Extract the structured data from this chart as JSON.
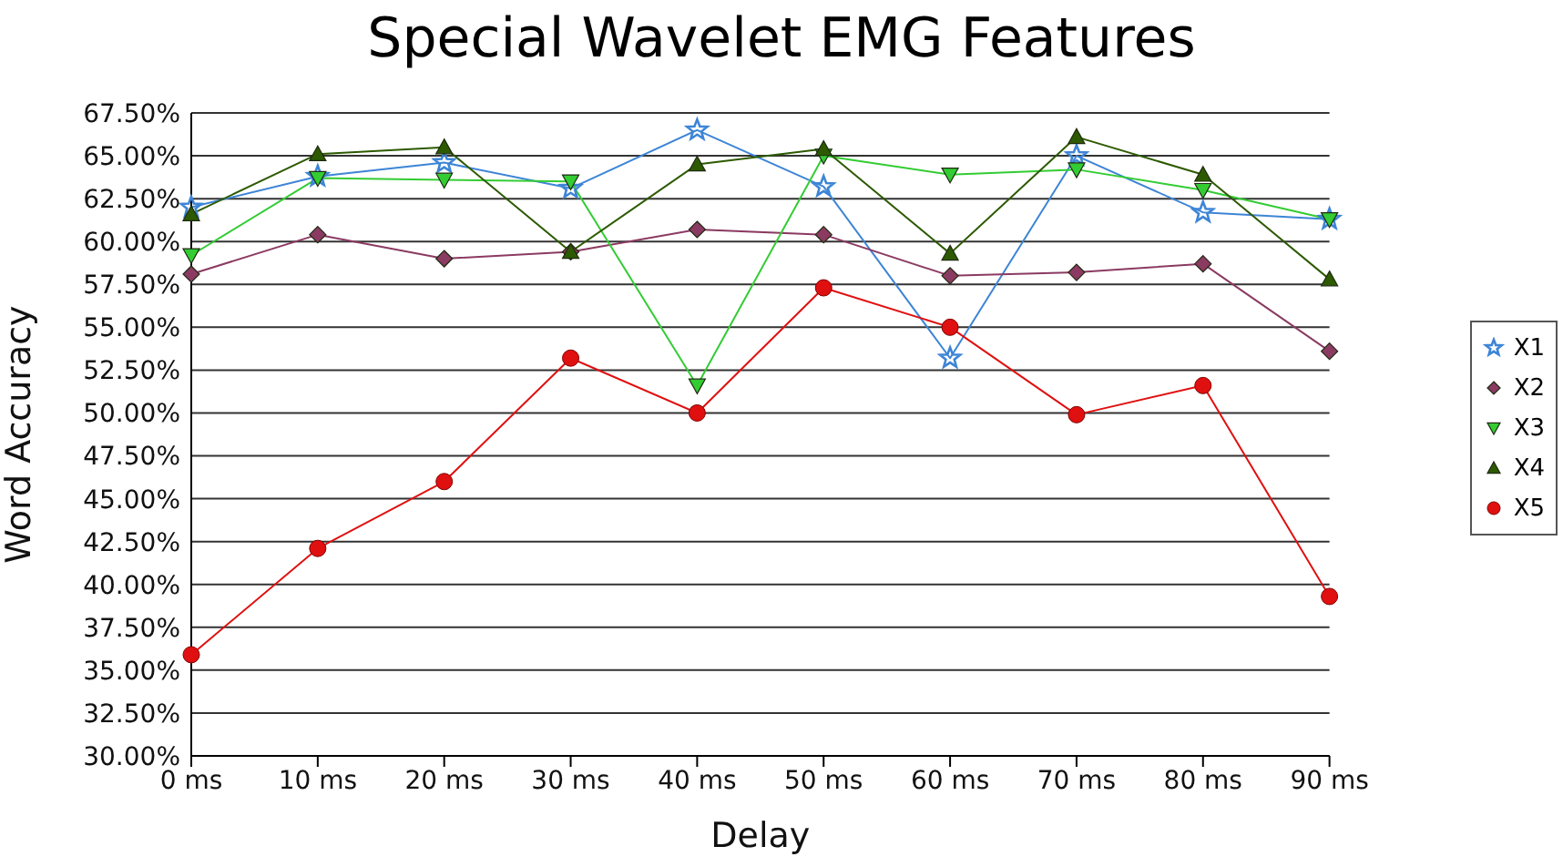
{
  "chart_data": {
    "type": "line",
    "title": "Special Wavelet EMG Features",
    "xlabel": "Delay",
    "ylabel": "Word Accuracy",
    "categories": [
      "0 ms",
      "10 ms",
      "20 ms",
      "30 ms",
      "40 ms",
      "50 ms",
      "60 ms",
      "70 ms",
      "80 ms",
      "90 ms"
    ],
    "series": [
      {
        "name": "X1",
        "color": "#3d85d6",
        "marker": "star",
        "values": [
          62.0,
          63.8,
          64.6,
          63.1,
          66.5,
          63.2,
          53.2,
          65.0,
          61.7,
          61.3
        ]
      },
      {
        "name": "X2",
        "color": "#8b3a62",
        "marker": "diamond",
        "values": [
          58.1,
          60.4,
          59.0,
          59.4,
          60.7,
          60.4,
          58.0,
          58.2,
          58.7,
          53.6
        ]
      },
      {
        "name": "X3",
        "color": "#33cc33",
        "marker": "triangle-down",
        "values": [
          59.2,
          63.7,
          63.6,
          63.5,
          51.6,
          65.0,
          63.9,
          64.2,
          63.0,
          61.3
        ]
      },
      {
        "name": "X4",
        "color": "#2d5a00",
        "marker": "triangle",
        "values": [
          61.6,
          65.1,
          65.5,
          59.4,
          64.5,
          65.4,
          59.3,
          66.1,
          63.9,
          57.8
        ]
      },
      {
        "name": "X5",
        "color": "#e01010",
        "marker": "circle",
        "values": [
          35.9,
          42.1,
          46.0,
          53.2,
          50.0,
          57.3,
          55.0,
          49.9,
          51.6,
          39.3
        ]
      }
    ],
    "ylim": [
      30,
      67.5
    ],
    "yticks": [
      {
        "value": 30,
        "label": "30.00%"
      },
      {
        "value": 32.5,
        "label": "32.50%"
      },
      {
        "value": 35,
        "label": "35.00%"
      },
      {
        "value": 37.5,
        "label": "37.50%"
      },
      {
        "value": 40,
        "label": "40.00%"
      },
      {
        "value": 42.5,
        "label": "42.50%"
      },
      {
        "value": 45,
        "label": "45.00%"
      },
      {
        "value": 47.5,
        "label": "47.50%"
      },
      {
        "value": 50,
        "label": "50.00%"
      },
      {
        "value": 52.5,
        "label": "52.50%"
      },
      {
        "value": 55,
        "label": "55.00%"
      },
      {
        "value": 57.5,
        "label": "57.50%"
      },
      {
        "value": 60,
        "label": "60.00%"
      },
      {
        "value": 62.5,
        "label": "62.50%"
      },
      {
        "value": 65,
        "label": "65.00%"
      },
      {
        "value": 67.5,
        "label": "67.50%"
      }
    ],
    "grid": "y",
    "legend": "right",
    "line_style": "solid"
  }
}
